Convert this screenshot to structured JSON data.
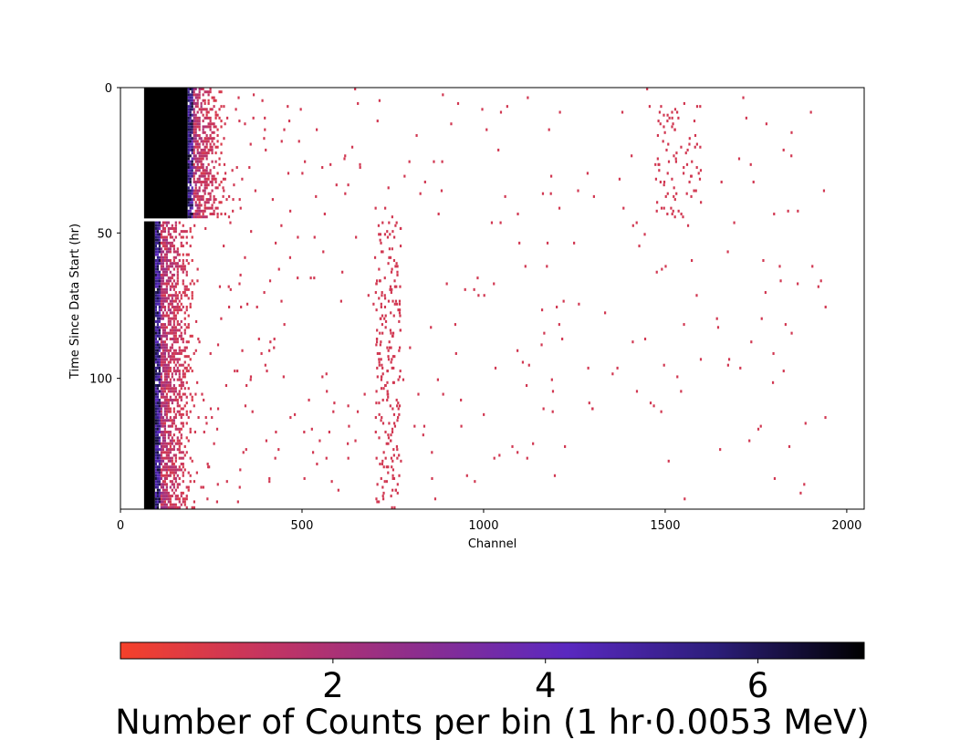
{
  "chart_data": [
    {
      "type": "heatmap",
      "title": "",
      "xlabel": "Channel",
      "ylabel": "Time Since Data Start (hr)",
      "xlim": [
        0,
        2048
      ],
      "ylim": [
        145,
        0
      ],
      "x_ticks": [
        "0",
        "500",
        "1000",
        "1500",
        "2000"
      ],
      "y_ticks": [
        "0",
        "50",
        "100"
      ],
      "grid": false,
      "time_segments": [
        {
          "hours": [
            0,
            45
          ],
          "saturated_channels": [
            65,
            185
          ],
          "dense_channels": [
            185,
            280
          ],
          "features": [
            {
              "channel_range": [
                1470,
                1600
              ],
              "hours": [
                5,
                45
              ],
              "density": "medium"
            }
          ]
        },
        {
          "hours": [
            46,
            145
          ],
          "saturated_channels": [
            65,
            95
          ],
          "dense_channels": [
            95,
            200
          ],
          "features": [
            {
              "channel_range": [
                700,
                770
              ],
              "hours": [
                46,
                145
              ],
              "density": "medium"
            }
          ]
        }
      ],
      "gap_hours": [
        45,
        46
      ],
      "max_channel_with_counts": 1950
    },
    {
      "type": "colorbar",
      "orientation": "horizontal",
      "label": "Number of Counts per bin (1 hr·0.0053 MeV)",
      "range": [
        0,
        7
      ],
      "ticks": [
        "2",
        "4",
        "6"
      ],
      "colors": [
        "#f5412a",
        "#c33462",
        "#8c2e8e",
        "#5a28c0",
        "#2c1e7a",
        "#000000"
      ]
    }
  ]
}
